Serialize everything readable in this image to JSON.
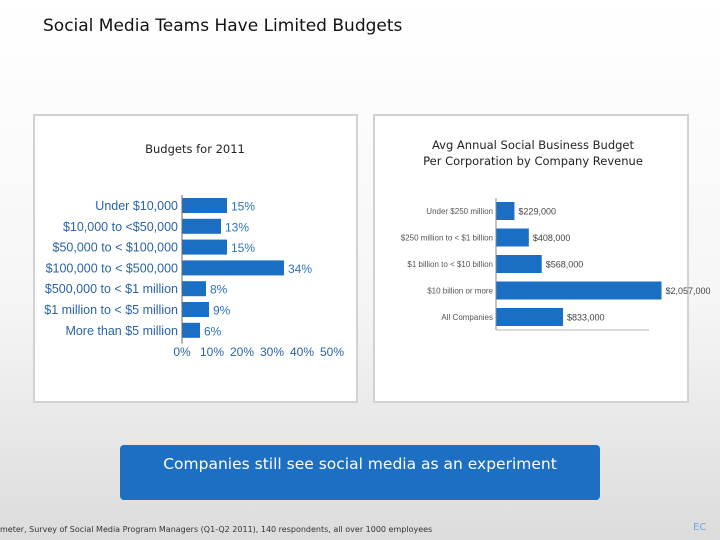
{
  "slide": {
    "title": "Social Media Teams Have Limited Budgets",
    "callout": "Companies still see social media as an experiment",
    "footer": "meter, Survey of Social Media Program Managers (Q1-Q2 2011), 140 respondents, all over 1000 employees",
    "page_number": "EC"
  },
  "colors": {
    "bar": "#1a6fc4",
    "bar_label": "#2d73bd",
    "callout_bg": "#1c6fc3"
  },
  "chart_data": [
    {
      "type": "bar",
      "orientation": "horizontal",
      "title": "Budgets for 2011",
      "categories": [
        "Under $10,000",
        "$10,000 to <$50,000",
        "$50,000 to < $100,000",
        "$100,000 to < $500,000",
        "$500,000 to < $1 million",
        "$1 million to < $5 million",
        "More than $5 million"
      ],
      "values": [
        15,
        13,
        15,
        34,
        8,
        9,
        6
      ],
      "value_labels": [
        "15%",
        "13%",
        "15%",
        "34%",
        "8%",
        "9%",
        "6%"
      ],
      "xlim": [
        0,
        50
      ],
      "xticks": [
        "0%",
        "10%",
        "20%",
        "30%",
        "40%",
        "50%"
      ],
      "grid": false
    },
    {
      "type": "bar",
      "orientation": "horizontal",
      "title": "Avg Annual Social Business Budget Per Corporation by Company Revenue",
      "title_lines": [
        "Avg Annual Social Business Budget",
        "Per Corporation by Company Revenue"
      ],
      "categories": [
        "Under $250 million",
        "$250 million to < $1 billion",
        "$1 billion to < $10 billion",
        "$10 billion or more",
        "All Companies"
      ],
      "values": [
        229000,
        408000,
        568000,
        2057000,
        833000
      ],
      "value_labels": [
        "$229,000",
        "$408,000",
        "$568,000",
        "$2,057,000",
        "$833,000"
      ],
      "xlim": [
        0,
        2150000
      ],
      "grid": false
    }
  ]
}
